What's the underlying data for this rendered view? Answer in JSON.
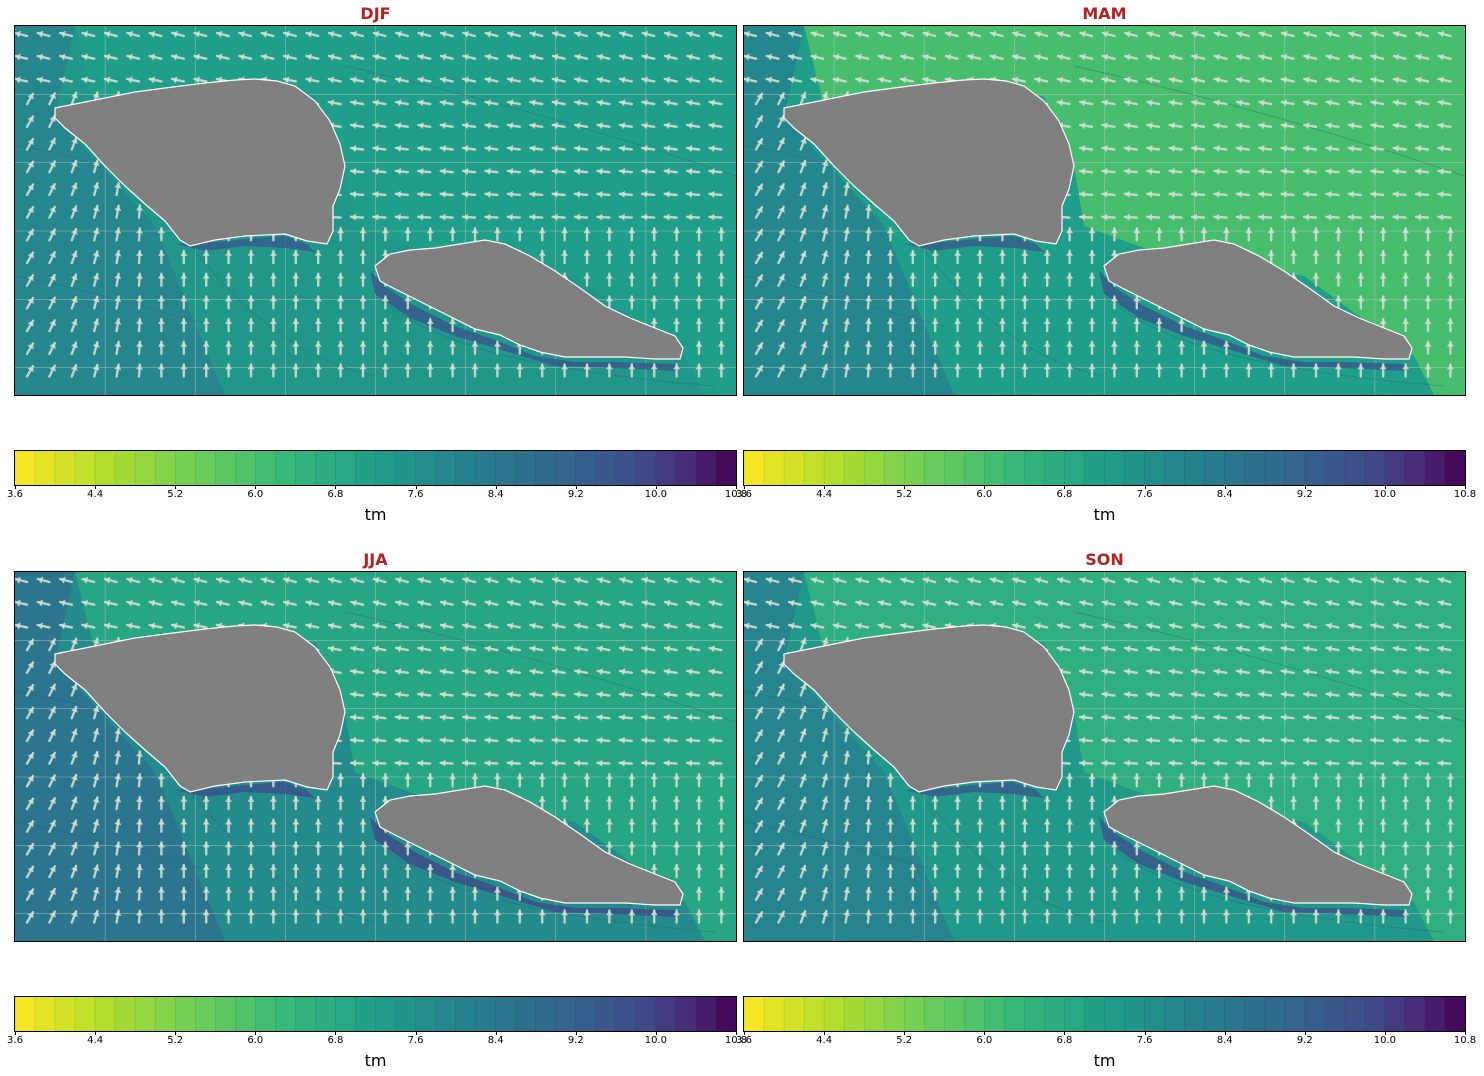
{
  "chart_data": [
    {
      "type": "heatmap",
      "title": "DJF",
      "regime": "djf",
      "colorbar": {
        "label": "tm",
        "range": [
          3.6,
          10.8
        ],
        "step": 0.2,
        "ticks": [
          "3.6",
          "4.4",
          "5.2",
          "6.0",
          "6.8",
          "7.6",
          "8.4",
          "9.2",
          "10.0",
          "10.8"
        ]
      }
    },
    {
      "type": "heatmap",
      "title": "MAM",
      "regime": "mam",
      "colorbar": {
        "label": "tm",
        "range": [
          3.6,
          10.8
        ],
        "step": 0.2,
        "ticks": [
          "3.6",
          "4.4",
          "5.2",
          "6.0",
          "6.8",
          "7.6",
          "8.4",
          "9.2",
          "10.0",
          "10.8"
        ]
      }
    },
    {
      "type": "heatmap",
      "title": "JJA",
      "regime": "jja",
      "colorbar": {
        "label": "tm",
        "range": [
          3.6,
          10.8
        ],
        "step": 0.2,
        "ticks": [
          "3.6",
          "4.4",
          "5.2",
          "6.0",
          "6.8",
          "7.6",
          "8.4",
          "9.2",
          "10.0",
          "10.8"
        ]
      }
    },
    {
      "type": "heatmap",
      "title": "SON",
      "regime": "son",
      "colorbar": {
        "label": "tm",
        "range": [
          3.6,
          10.8
        ],
        "step": 0.2,
        "ticks": [
          "3.6",
          "4.4",
          "5.2",
          "6.0",
          "6.8",
          "7.6",
          "8.4",
          "9.2",
          "10.0",
          "10.8"
        ]
      }
    }
  ],
  "colors": {
    "title": "#b22222",
    "land": "#808080",
    "arrow": "#d3dcd0",
    "grid": "#c8c8c8",
    "colormap": "viridis_r"
  }
}
